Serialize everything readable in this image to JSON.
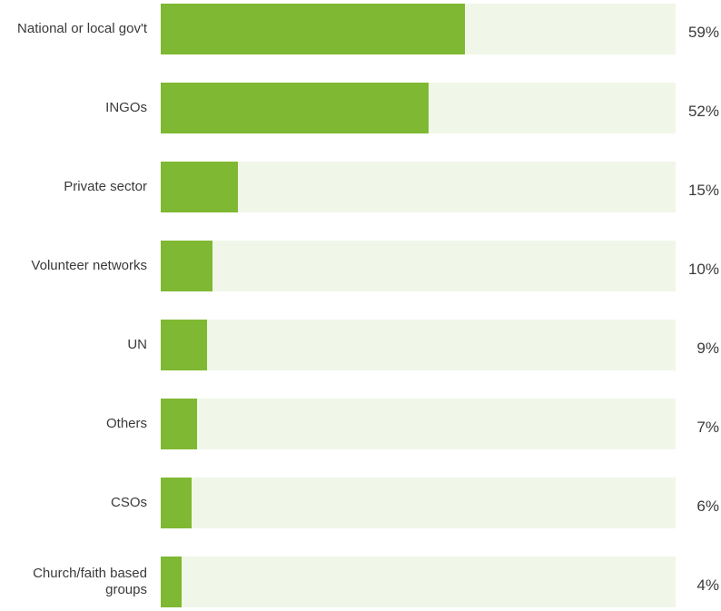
{
  "chart_data": {
    "type": "bar",
    "orientation": "horizontal",
    "categories": [
      "National or local gov't",
      "INGOs",
      "Private sector",
      "Volunteer networks",
      "UN",
      "Others",
      "CSOs",
      "Church/faith based groups"
    ],
    "values": [
      59,
      52,
      15,
      10,
      9,
      7,
      6,
      4
    ],
    "value_labels": [
      "59%",
      "52%",
      "15%",
      "10%",
      "9%",
      "7%",
      "6%",
      "4%"
    ],
    "xlim": [
      0,
      100
    ],
    "grid": false,
    "colors": {
      "bar": "#7fb832",
      "track": "#f0f7e8"
    }
  }
}
